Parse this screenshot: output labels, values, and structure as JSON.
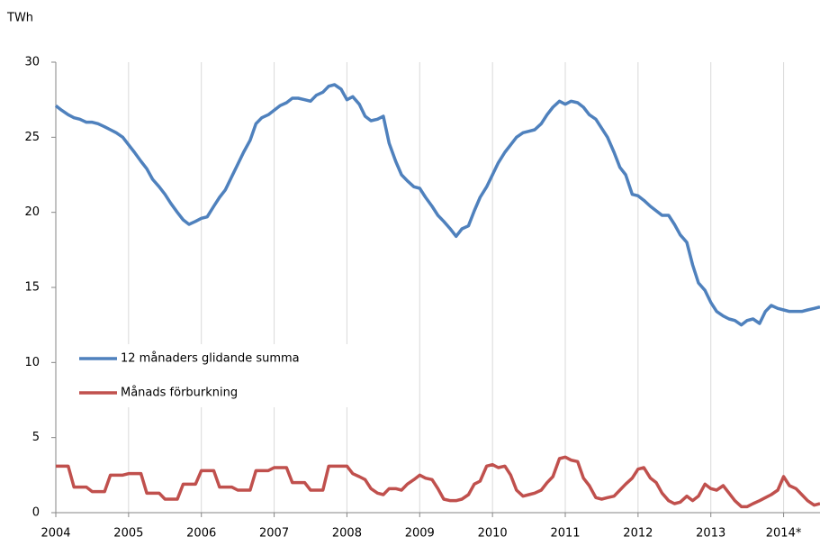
{
  "chart_data": {
    "type": "line",
    "y_axis_label": "TWh",
    "x": [
      2004,
      2004.08,
      2004.17,
      2004.25,
      2004.33,
      2004.42,
      2004.5,
      2004.58,
      2004.67,
      2004.75,
      2004.83,
      2004.92,
      2005,
      2005.08,
      2005.17,
      2005.25,
      2005.33,
      2005.42,
      2005.5,
      2005.58,
      2005.67,
      2005.75,
      2005.83,
      2005.92,
      2006,
      2006.08,
      2006.17,
      2006.25,
      2006.33,
      2006.42,
      2006.5,
      2006.58,
      2006.67,
      2006.75,
      2006.83,
      2006.92,
      2007,
      2007.08,
      2007.17,
      2007.25,
      2007.33,
      2007.42,
      2007.5,
      2007.58,
      2007.67,
      2007.75,
      2007.83,
      2007.92,
      2008,
      2008.08,
      2008.17,
      2008.25,
      2008.33,
      2008.42,
      2008.5,
      2008.58,
      2008.67,
      2008.75,
      2008.83,
      2008.92,
      2009,
      2009.08,
      2009.17,
      2009.25,
      2009.33,
      2009.42,
      2009.5,
      2009.58,
      2009.67,
      2009.75,
      2009.83,
      2009.92,
      2010,
      2010.08,
      2010.17,
      2010.25,
      2010.33,
      2010.42,
      2010.5,
      2010.58,
      2010.67,
      2010.75,
      2010.83,
      2010.92,
      2011,
      2011.08,
      2011.17,
      2011.25,
      2011.33,
      2011.42,
      2011.5,
      2011.58,
      2011.67,
      2011.75,
      2011.83,
      2011.92,
      2012,
      2012.08,
      2012.17,
      2012.25,
      2012.33,
      2012.42,
      2012.5,
      2012.58,
      2012.67,
      2012.75,
      2012.83,
      2012.92,
      2013,
      2013.08,
      2013.17,
      2013.25,
      2013.33,
      2013.42,
      2013.5,
      2013.58,
      2013.67,
      2013.75,
      2013.83,
      2013.92,
      2014,
      2014.08,
      2014.17,
      2014.25,
      2014.33,
      2014.42,
      2014.5
    ],
    "series": [
      {
        "name": "12 månaders glidande summa",
        "color": "#4f81bd",
        "values": [
          27.1,
          26.8,
          26.5,
          26.3,
          26.2,
          26.0,
          26.0,
          25.9,
          25.7,
          25.5,
          25.3,
          25.0,
          24.5,
          24.0,
          23.4,
          22.9,
          22.2,
          21.7,
          21.2,
          20.6,
          20.0,
          19.5,
          19.2,
          19.4,
          19.6,
          19.7,
          20.4,
          21.0,
          21.5,
          22.4,
          23.2,
          24.0,
          24.8,
          25.9,
          26.3,
          26.5,
          26.8,
          27.1,
          27.3,
          27.6,
          27.6,
          27.5,
          27.4,
          27.8,
          28.0,
          28.4,
          28.5,
          28.2,
          27.5,
          27.7,
          27.2,
          26.4,
          26.1,
          26.2,
          26.4,
          24.6,
          23.4,
          22.5,
          22.1,
          21.7,
          21.6,
          21.0,
          20.4,
          19.8,
          19.4,
          18.9,
          18.4,
          18.9,
          19.1,
          20.1,
          21.0,
          21.7,
          22.5,
          23.3,
          24.0,
          24.5,
          25.0,
          25.3,
          25.4,
          25.5,
          25.9,
          26.5,
          27.0,
          27.4,
          27.2,
          27.4,
          27.3,
          27.0,
          26.5,
          26.2,
          25.6,
          25.0,
          24.0,
          23.0,
          22.5,
          21.2,
          21.1,
          20.8,
          20.4,
          20.1,
          19.8,
          19.8,
          19.2,
          18.5,
          18.0,
          16.5,
          15.3,
          14.8,
          14.0,
          13.4,
          13.1,
          12.9,
          12.8,
          12.5,
          12.8,
          12.9,
          12.6,
          13.4,
          13.8,
          13.6,
          13.5,
          13.4,
          13.4,
          13.4,
          13.5,
          13.6,
          13.7
        ]
      },
      {
        "name": "Månads förburkning",
        "color": "#c0504d",
        "values": [
          3.1,
          3.1,
          3.1,
          1.7,
          1.7,
          1.7,
          1.4,
          1.4,
          1.4,
          2.5,
          2.5,
          2.5,
          2.6,
          2.6,
          2.6,
          1.3,
          1.3,
          1.3,
          0.9,
          0.9,
          0.9,
          1.9,
          1.9,
          1.9,
          2.8,
          2.8,
          2.8,
          1.7,
          1.7,
          1.7,
          1.5,
          1.5,
          1.5,
          2.8,
          2.8,
          2.8,
          3.0,
          3.0,
          3.0,
          2.0,
          2.0,
          2.0,
          1.5,
          1.5,
          1.5,
          3.1,
          3.1,
          3.1,
          3.1,
          2.6,
          2.4,
          2.2,
          1.6,
          1.3,
          1.2,
          1.6,
          1.6,
          1.5,
          1.9,
          2.2,
          2.5,
          2.3,
          2.2,
          1.6,
          0.9,
          0.8,
          0.8,
          0.9,
          1.2,
          1.9,
          2.1,
          3.1,
          3.2,
          3.0,
          3.1,
          2.5,
          1.5,
          1.1,
          1.2,
          1.3,
          1.5,
          2.0,
          2.4,
          3.6,
          3.7,
          3.5,
          3.4,
          2.3,
          1.8,
          1.0,
          0.9,
          1.0,
          1.1,
          1.5,
          1.9,
          2.3,
          2.9,
          3.0,
          2.3,
          2.0,
          1.3,
          0.8,
          0.6,
          0.7,
          1.1,
          0.8,
          1.1,
          1.9,
          1.6,
          1.5,
          1.8,
          1.3,
          0.8,
          0.4,
          0.4,
          0.6,
          0.8,
          1.0,
          1.2,
          1.5,
          2.4,
          1.8,
          1.6,
          1.2,
          0.8,
          0.5,
          0.6
        ]
      }
    ],
    "xlim": [
      2004,
      2014.5
    ],
    "xticks": [
      2004,
      2005,
      2006,
      2007,
      2008,
      2009,
      2010,
      2011,
      2012,
      2013,
      {
        "value": 2014,
        "label": "2014*"
      }
    ],
    "ylim": [
      0,
      30
    ],
    "yticks": [
      0,
      5,
      10,
      15,
      20,
      25,
      30
    ],
    "grid": true,
    "legend": "left"
  }
}
